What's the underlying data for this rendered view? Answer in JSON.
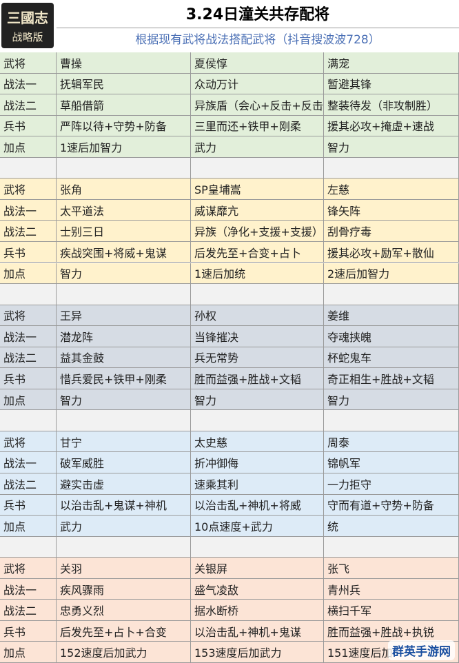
{
  "header": {
    "logo": [
      "三國志",
      "战略版"
    ],
    "title": "3.24日潼关共存配将",
    "subtitle": "根据现有武将战法搭配武将（抖音搜波波728）"
  },
  "table": {
    "groups": [
      {
        "rows": [
          [
            "武将",
            "曹操",
            "夏侯惇",
            "满宠"
          ],
          [
            "战法一",
            "抚辑军民",
            "众动万计",
            "暂避其锋"
          ],
          [
            "战法二",
            "草船借箭",
            "异族盾（会心+反击+反击",
            "整装待发（非攻制胜）"
          ],
          [
            "兵书",
            "严阵以待+守势+防备",
            "三里而还+铁甲+刚柔",
            "援其必攻+掩虚+速战"
          ],
          [
            "加点",
            "1速后加智力",
            "武力",
            "智力"
          ]
        ]
      },
      {
        "rows": [
          [
            "武将",
            "张角",
            "SP皇埔嵩",
            "左慈"
          ],
          [
            "战法一",
            "太平道法",
            "威谋靡亢",
            "锋矢阵"
          ],
          [
            "战法二",
            "士别三日",
            "异族（净化+支援+支援）",
            "刮骨疗毒"
          ],
          [
            "兵书",
            "疾战突围+将威+鬼谋",
            "后发先至+合变+占卜",
            "援其必攻+励军+散仙"
          ],
          [
            "加点",
            "智力",
            "1速后加统",
            "2速后加智力"
          ]
        ]
      },
      {
        "rows": [
          [
            "武将",
            "王异",
            "孙权",
            "姜维"
          ],
          [
            "战法一",
            "潜龙阵",
            "当锋摧决",
            "夺魂挟魄"
          ],
          [
            "战法二",
            "益其金鼓",
            "兵无常势",
            "杯蛇鬼车"
          ],
          [
            "兵书",
            "惜兵爱民+铁甲+刚柔",
            "胜而益强+胜战+文韬",
            "奇正相生+胜战+文韬"
          ],
          [
            "加点",
            "智力",
            "智力",
            "智力"
          ]
        ]
      },
      {
        "rows": [
          [
            "武将",
            "甘宁",
            "太史慈",
            "周泰"
          ],
          [
            "战法一",
            "破军威胜",
            "折冲御侮",
            "锦帆军"
          ],
          [
            "战法二",
            "避实击虚",
            "速乘其利",
            "一力拒守"
          ],
          [
            "兵书",
            "以治击乱+鬼谋+神机",
            "以治击乱+神机+将威",
            "守而有道+守势+防备"
          ],
          [
            "加点",
            "武力",
            "10点速度+武力",
            "统"
          ]
        ]
      },
      {
        "rows": [
          [
            "武将",
            "关羽",
            "关银屏",
            "张飞"
          ],
          [
            "战法一",
            "疾风骤雨",
            "盛气凌敌",
            "青州兵"
          ],
          [
            "战法二",
            "忠勇义烈",
            "据水断桥",
            "横扫千军"
          ],
          [
            "兵书",
            "后发先至+占卜+合变",
            "以治击乱+神机+鬼谋",
            "胜而益强+胜战+执锐"
          ],
          [
            "加点",
            "152速度后加武力",
            "153速度后加武力",
            "151速度后加"
          ]
        ]
      }
    ]
  },
  "watermark": "群英手游网"
}
